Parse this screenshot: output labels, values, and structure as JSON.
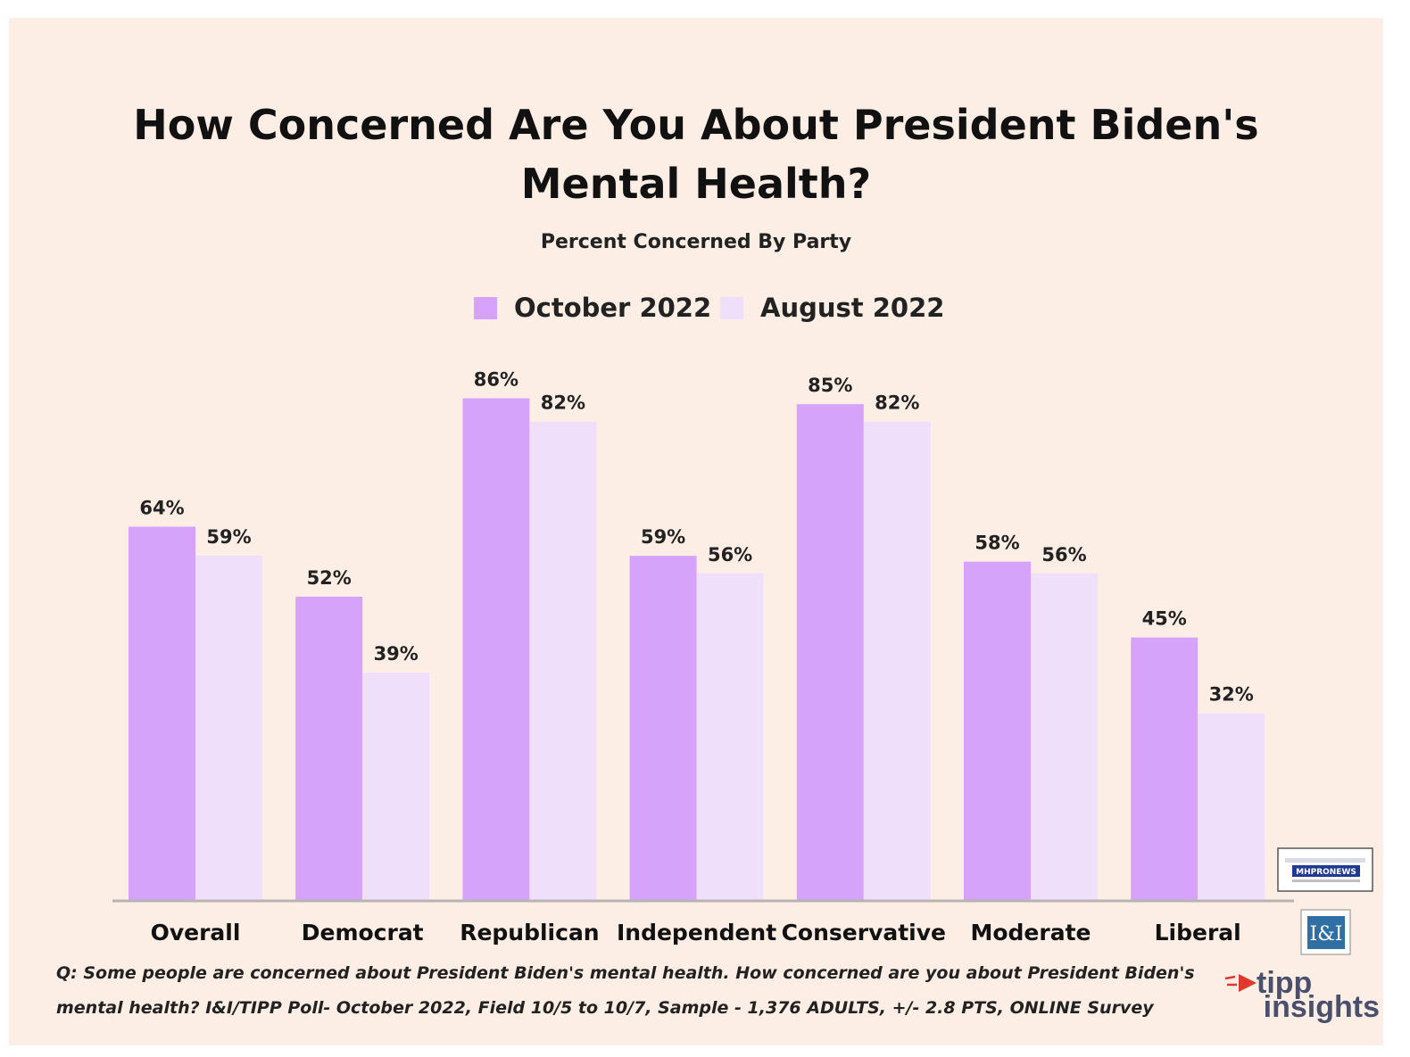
{
  "chart_data": {
    "type": "bar",
    "title_line1": "How Concerned Are You About President Biden's",
    "title_line2": "Mental Health?",
    "subtitle": "Percent Concerned By Party",
    "categories": [
      "Overall",
      "Democrat",
      "Republican",
      "Independent",
      "Conservative",
      "Moderate",
      "Liberal"
    ],
    "series": [
      {
        "name": "October 2022",
        "values": [
          64,
          52,
          86,
          59,
          85,
          58,
          45
        ],
        "color": "#d6a3fb"
      },
      {
        "name": "August 2022",
        "values": [
          59,
          39,
          82,
          56,
          82,
          56,
          32
        ],
        "color": "#efdffb"
      }
    ],
    "value_suffix": "%",
    "ylim": [
      0,
      100
    ],
    "legend": "top-center",
    "grid": false,
    "xlabel": "",
    "ylabel": ""
  },
  "footnote": {
    "line1": "Q: Some people are concerned about President Biden's mental health. How concerned are you about President Biden's",
    "line2": "mental health? I&I/TIPP Poll- October 2022, Field 10/5 to 10/7, Sample - 1,376 ADULTS, +/- 2.8 PTS, ONLINE Survey"
  },
  "logos": {
    "tipp_line1": "tipp",
    "tipp_line2": "insights",
    "ii_badge": "I&I",
    "mhpronews": "MHPRONEWS"
  },
  "colors": {
    "background": "#fdeee5",
    "axis": "#b9b4b4"
  }
}
